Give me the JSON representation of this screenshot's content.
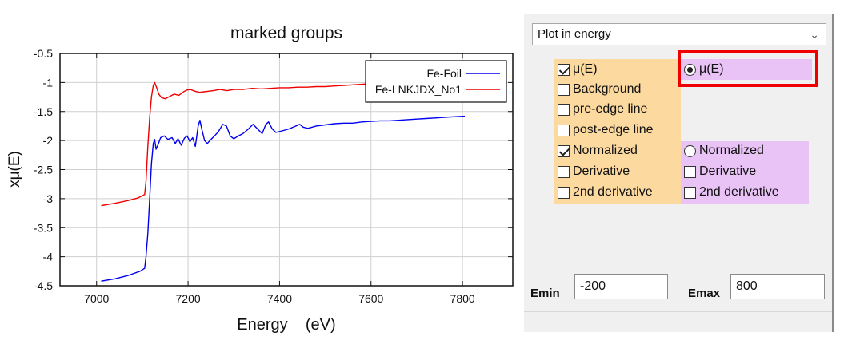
{
  "chart_data": {
    "type": "line",
    "title": "marked groups",
    "xlabel": "Energy    (eV)",
    "ylabel": "xμ(E)",
    "xlim": [
      6920,
      7910
    ],
    "ylim": [
      -4.5,
      -0.5
    ],
    "xticks": [
      7000,
      7200,
      7400,
      7600,
      7800
    ],
    "xtick_labels": [
      "7000",
      "7200",
      "7400",
      "7600",
      "7800"
    ],
    "yticks": [
      -0.5,
      -1,
      -1.5,
      -2,
      -2.5,
      -3,
      -3.5,
      -4,
      -4.5
    ],
    "ytick_labels": [
      "-0.5",
      "-1",
      "-1.5",
      "-2",
      "-2.5",
      "-3",
      "-3.5",
      "-4",
      "-4.5"
    ],
    "grid": true,
    "legend_position": "top-right",
    "series": [
      {
        "name": "Fe-Foil",
        "color": "#0000ee",
        "points": [
          [
            7010,
            -4.42
          ],
          [
            7040,
            -4.38
          ],
          [
            7070,
            -4.32
          ],
          [
            7095,
            -4.25
          ],
          [
            7105,
            -4.2
          ],
          [
            7108,
            -4.0
          ],
          [
            7112,
            -3.6
          ],
          [
            7116,
            -3.0
          ],
          [
            7120,
            -2.4
          ],
          [
            7124,
            -2.05
          ],
          [
            7127,
            -1.98
          ],
          [
            7130,
            -2.15
          ],
          [
            7134,
            -2.08
          ],
          [
            7140,
            -1.95
          ],
          [
            7148,
            -1.92
          ],
          [
            7156,
            -1.98
          ],
          [
            7165,
            -1.95
          ],
          [
            7172,
            -2.05
          ],
          [
            7178,
            -1.97
          ],
          [
            7185,
            -2.08
          ],
          [
            7192,
            -1.96
          ],
          [
            7198,
            -1.92
          ],
          [
            7204,
            -2.02
          ],
          [
            7210,
            -1.95
          ],
          [
            7216,
            -2.1
          ],
          [
            7222,
            -1.75
          ],
          [
            7226,
            -1.65
          ],
          [
            7230,
            -1.8
          ],
          [
            7236,
            -2.0
          ],
          [
            7242,
            -2.05
          ],
          [
            7250,
            -1.98
          ],
          [
            7258,
            -1.92
          ],
          [
            7266,
            -1.85
          ],
          [
            7276,
            -1.72
          ],
          [
            7284,
            -1.75
          ],
          [
            7292,
            -1.92
          ],
          [
            7300,
            -1.97
          ],
          [
            7310,
            -1.92
          ],
          [
            7320,
            -1.88
          ],
          [
            7332,
            -1.8
          ],
          [
            7342,
            -1.72
          ],
          [
            7352,
            -1.8
          ],
          [
            7362,
            -1.88
          ],
          [
            7370,
            -1.72
          ],
          [
            7376,
            -1.68
          ],
          [
            7384,
            -1.8
          ],
          [
            7392,
            -1.86
          ],
          [
            7402,
            -1.84
          ],
          [
            7412,
            -1.82
          ],
          [
            7420,
            -1.8
          ],
          [
            7436,
            -1.75
          ],
          [
            7444,
            -1.72
          ],
          [
            7452,
            -1.77
          ],
          [
            7462,
            -1.79
          ],
          [
            7480,
            -1.75
          ],
          [
            7500,
            -1.73
          ],
          [
            7520,
            -1.71
          ],
          [
            7540,
            -1.7
          ],
          [
            7560,
            -1.7
          ],
          [
            7580,
            -1.68
          ],
          [
            7600,
            -1.67
          ],
          [
            7620,
            -1.66
          ],
          [
            7640,
            -1.66
          ],
          [
            7660,
            -1.65
          ],
          [
            7680,
            -1.64
          ],
          [
            7700,
            -1.63
          ],
          [
            7720,
            -1.62
          ],
          [
            7740,
            -1.61
          ],
          [
            7760,
            -1.6
          ],
          [
            7780,
            -1.59
          ],
          [
            7805,
            -1.58
          ]
        ]
      },
      {
        "name": "Fe-LNKJDX_No1",
        "color": "#ee0000",
        "points": [
          [
            7010,
            -3.12
          ],
          [
            7040,
            -3.08
          ],
          [
            7070,
            -3.03
          ],
          [
            7090,
            -2.99
          ],
          [
            7105,
            -2.93
          ],
          [
            7108,
            -2.7
          ],
          [
            7112,
            -2.1
          ],
          [
            7116,
            -1.6
          ],
          [
            7120,
            -1.25
          ],
          [
            7124,
            -1.05
          ],
          [
            7127,
            -1.0
          ],
          [
            7131,
            -1.08
          ],
          [
            7136,
            -1.2
          ],
          [
            7142,
            -1.26
          ],
          [
            7150,
            -1.28
          ],
          [
            7160,
            -1.24
          ],
          [
            7170,
            -1.2
          ],
          [
            7180,
            -1.22
          ],
          [
            7190,
            -1.16
          ],
          [
            7198,
            -1.13
          ],
          [
            7205,
            -1.12
          ],
          [
            7215,
            -1.15
          ],
          [
            7225,
            -1.17
          ],
          [
            7235,
            -1.16
          ],
          [
            7245,
            -1.15
          ],
          [
            7255,
            -1.14
          ],
          [
            7270,
            -1.12
          ],
          [
            7285,
            -1.14
          ],
          [
            7300,
            -1.12
          ],
          [
            7320,
            -1.12
          ],
          [
            7340,
            -1.1
          ],
          [
            7360,
            -1.11
          ],
          [
            7380,
            -1.1
          ],
          [
            7400,
            -1.09
          ],
          [
            7420,
            -1.09
          ],
          [
            7440,
            -1.08
          ],
          [
            7460,
            -1.08
          ],
          [
            7480,
            -1.07
          ],
          [
            7500,
            -1.07
          ],
          [
            7520,
            -1.06
          ],
          [
            7540,
            -1.05
          ],
          [
            7560,
            -1.04
          ],
          [
            7580,
            -1.03
          ],
          [
            7600,
            -1.02
          ],
          [
            7620,
            -1.01
          ],
          [
            7640,
            -1.0
          ],
          [
            7660,
            -0.99
          ],
          [
            7680,
            -0.98
          ],
          [
            7700,
            -0.98
          ],
          [
            7720,
            -0.97
          ]
        ]
      }
    ]
  },
  "panel": {
    "plot_mode": "Plot in energy",
    "options_left": [
      {
        "label": "μ(E)",
        "checked": true
      },
      {
        "label": "Background",
        "checked": false
      },
      {
        "label": "pre-edge line",
        "checked": false
      },
      {
        "label": "post-edge line",
        "checked": false
      },
      {
        "label": "Normalized",
        "checked": true
      },
      {
        "label": "Derivative",
        "checked": false
      },
      {
        "label": "2nd derivative",
        "checked": false
      }
    ],
    "radio_mu": {
      "label": "μ(E)",
      "checked": true
    },
    "radio_normalized": {
      "label": "Normalized",
      "checked": false
    },
    "right_derivative": {
      "label": "Derivative",
      "checked": false
    },
    "right_2nd_derivative": {
      "label": "2nd derivative",
      "checked": false
    },
    "emin_label": "Emin",
    "emin_value": "-200",
    "emax_label": "Emax",
    "emax_value": "800"
  },
  "colors": {
    "orange_highlight": "#fbd99f",
    "purple_highlight": "#e9c3f6",
    "red_box": "#ee0000"
  }
}
